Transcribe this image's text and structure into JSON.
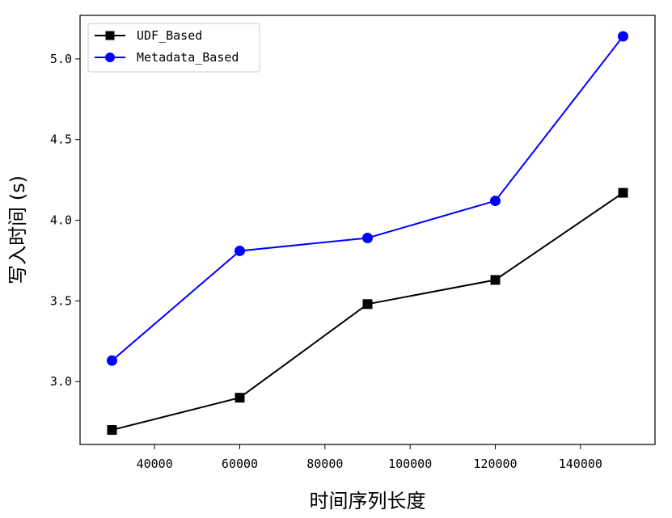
{
  "chart_data": {
    "type": "line",
    "xlabel": "时间序列长度",
    "ylabel": "写入时间 (s)",
    "x": [
      30000,
      60000,
      90000,
      120000,
      150000
    ],
    "xticks": [
      40000,
      60000,
      80000,
      100000,
      120000,
      140000
    ],
    "xtick_labels": [
      "40000",
      "60000",
      "80000",
      "100000",
      "120000",
      "140000"
    ],
    "yticks": [
      3.0,
      3.5,
      4.0,
      4.5,
      5.0
    ],
    "ytick_labels": [
      "3.0",
      "3.5",
      "4.0",
      "4.5",
      "5.0"
    ],
    "xlim": [
      22500,
      157500
    ],
    "ylim": [
      2.61,
      5.27
    ],
    "grid": false,
    "legend_position": "top-left",
    "series": [
      {
        "name": "UDF_Based",
        "values": [
          2.7,
          2.9,
          3.48,
          3.63,
          4.17
        ],
        "color": "#000000",
        "marker": "square"
      },
      {
        "name": "Metadata_Based",
        "values": [
          3.13,
          3.81,
          3.89,
          4.12,
          5.14
        ],
        "color": "#0000ff",
        "marker": "circle"
      }
    ]
  }
}
